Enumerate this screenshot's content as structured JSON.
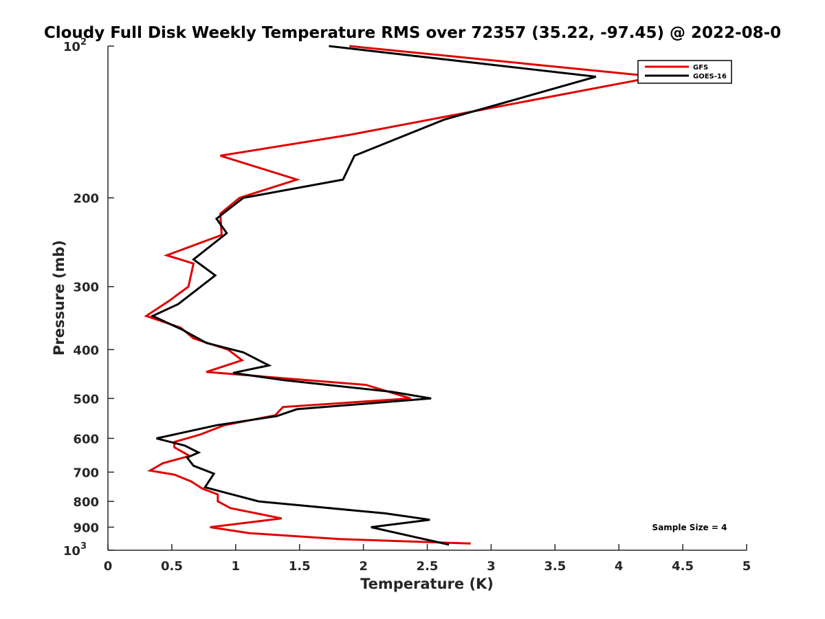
{
  "chart_data": {
    "type": "line",
    "title": "Cloudy Full Disk Weekly Temperature RMS over 72357 (35.22, -97.45) @ 2022-08-0",
    "xlabel": "Temperature (K)",
    "ylabel": "Pressure (mb)",
    "xlim": [
      0,
      5
    ],
    "ylim": [
      100,
      1000
    ],
    "y_scale": "log",
    "y_reversed": true,
    "x_ticks": [
      0,
      0.5,
      1,
      1.5,
      2,
      2.5,
      3,
      3.5,
      4,
      4.5,
      5
    ],
    "x_tick_labels": [
      "0",
      "0.5",
      "1",
      "1.5",
      "2",
      "2.5",
      "3",
      "3.5",
      "4",
      "4.5",
      "5"
    ],
    "y_ticks": [
      {
        "value": 100,
        "label": "10",
        "exp": "2"
      },
      {
        "value": 200,
        "label": "200",
        "exp": ""
      },
      {
        "value": 300,
        "label": "300",
        "exp": ""
      },
      {
        "value": 400,
        "label": "400",
        "exp": ""
      },
      {
        "value": 500,
        "label": "500",
        "exp": ""
      },
      {
        "value": 600,
        "label": "600",
        "exp": ""
      },
      {
        "value": 700,
        "label": "700",
        "exp": ""
      },
      {
        "value": 800,
        "label": "800",
        "exp": ""
      },
      {
        "value": 900,
        "label": "900",
        "exp": ""
      },
      {
        "value": 1000,
        "label": "10",
        "exp": "3"
      }
    ],
    "grid": false,
    "legend_position": "top-right",
    "annotation": "Sample Size = 4",
    "series": [
      {
        "name": "GFS",
        "color": "#e00000",
        "points": [
          {
            "x": 1.89,
            "p": 100
          },
          {
            "x": 4.29,
            "p": 115
          },
          {
            "x": 1.89,
            "p": 150
          },
          {
            "x": 0.88,
            "p": 165
          },
          {
            "x": 1.48,
            "p": 184
          },
          {
            "x": 1.03,
            "p": 200
          },
          {
            "x": 0.88,
            "p": 215
          },
          {
            "x": 0.89,
            "p": 237
          },
          {
            "x": 0.46,
            "p": 260
          },
          {
            "x": 0.67,
            "p": 270
          },
          {
            "x": 0.63,
            "p": 300
          },
          {
            "x": 0.48,
            "p": 320
          },
          {
            "x": 0.3,
            "p": 343
          },
          {
            "x": 0.57,
            "p": 362
          },
          {
            "x": 0.67,
            "p": 380
          },
          {
            "x": 0.94,
            "p": 400
          },
          {
            "x": 1.05,
            "p": 420
          },
          {
            "x": 0.77,
            "p": 443
          },
          {
            "x": 2.02,
            "p": 470
          },
          {
            "x": 2.37,
            "p": 500
          },
          {
            "x": 1.37,
            "p": 520
          },
          {
            "x": 1.31,
            "p": 540
          },
          {
            "x": 0.91,
            "p": 565
          },
          {
            "x": 0.72,
            "p": 590
          },
          {
            "x": 0.52,
            "p": 610
          },
          {
            "x": 0.52,
            "p": 625
          },
          {
            "x": 0.64,
            "p": 650
          },
          {
            "x": 0.43,
            "p": 672
          },
          {
            "x": 0.33,
            "p": 695
          },
          {
            "x": 0.52,
            "p": 708
          },
          {
            "x": 0.65,
            "p": 730
          },
          {
            "x": 0.74,
            "p": 755
          },
          {
            "x": 0.86,
            "p": 775
          },
          {
            "x": 0.86,
            "p": 800
          },
          {
            "x": 0.96,
            "p": 825
          },
          {
            "x": 1.36,
            "p": 865
          },
          {
            "x": 0.8,
            "p": 900
          },
          {
            "x": 1.11,
            "p": 925
          },
          {
            "x": 1.81,
            "p": 950
          },
          {
            "x": 2.84,
            "p": 970
          }
        ]
      },
      {
        "name": "GOES-16",
        "color": "#000000",
        "points": [
          {
            "x": 1.73,
            "p": 100
          },
          {
            "x": 3.82,
            "p": 115
          },
          {
            "x": 2.63,
            "p": 140
          },
          {
            "x": 1.93,
            "p": 165
          },
          {
            "x": 1.84,
            "p": 184
          },
          {
            "x": 1.06,
            "p": 200
          },
          {
            "x": 0.85,
            "p": 220
          },
          {
            "x": 0.93,
            "p": 235
          },
          {
            "x": 0.67,
            "p": 265
          },
          {
            "x": 0.84,
            "p": 285
          },
          {
            "x": 0.55,
            "p": 325
          },
          {
            "x": 0.35,
            "p": 343
          },
          {
            "x": 0.58,
            "p": 365
          },
          {
            "x": 0.77,
            "p": 388
          },
          {
            "x": 1.06,
            "p": 405
          },
          {
            "x": 1.26,
            "p": 430
          },
          {
            "x": 0.98,
            "p": 445
          },
          {
            "x": 1.38,
            "p": 460
          },
          {
            "x": 2.22,
            "p": 485
          },
          {
            "x": 2.53,
            "p": 500
          },
          {
            "x": 1.48,
            "p": 525
          },
          {
            "x": 1.32,
            "p": 542
          },
          {
            "x": 0.85,
            "p": 565
          },
          {
            "x": 0.38,
            "p": 600
          },
          {
            "x": 0.6,
            "p": 620
          },
          {
            "x": 0.71,
            "p": 640
          },
          {
            "x": 0.62,
            "p": 655
          },
          {
            "x": 0.67,
            "p": 680
          },
          {
            "x": 0.83,
            "p": 705
          },
          {
            "x": 0.76,
            "p": 750
          },
          {
            "x": 0.93,
            "p": 770
          },
          {
            "x": 1.18,
            "p": 800
          },
          {
            "x": 2.17,
            "p": 845
          },
          {
            "x": 2.52,
            "p": 870
          },
          {
            "x": 2.06,
            "p": 900
          },
          {
            "x": 2.39,
            "p": 940
          },
          {
            "x": 2.67,
            "p": 975
          }
        ]
      }
    ]
  }
}
